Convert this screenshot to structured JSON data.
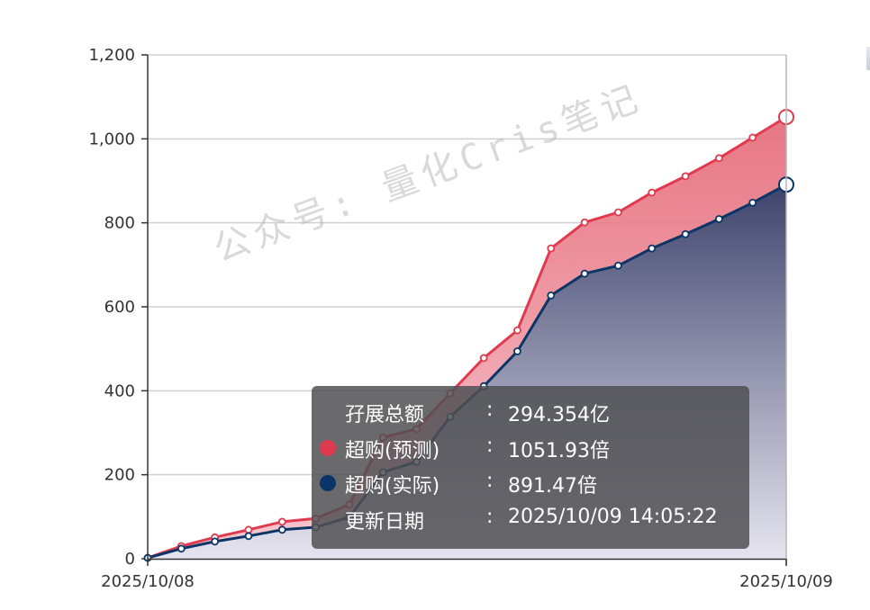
{
  "chart_data": {
    "type": "area",
    "title": "",
    "xlabel": "",
    "ylabel": "",
    "ylim": [
      0,
      1200
    ],
    "y_ticks": [
      "0",
      "200",
      "400",
      "600",
      "800",
      "1,000",
      "1,200"
    ],
    "x_tick_labels": [
      "2025/10/08",
      "2025/10/09"
    ],
    "grid": true,
    "series": [
      {
        "name": "超购(预测)",
        "color": "#e03a4e",
        "values": [
          2,
          30,
          51,
          69,
          88,
          96,
          129,
          289,
          309,
          394,
          478,
          544,
          739,
          801,
          825,
          872,
          911,
          954,
          1003,
          1052
        ]
      },
      {
        "name": "超购(实际)",
        "color": "#0b3566",
        "values": [
          2,
          24,
          41,
          54,
          69,
          75,
          99,
          206,
          231,
          338,
          411,
          494,
          627,
          679,
          698,
          739,
          773,
          809,
          848,
          891
        ]
      }
    ]
  },
  "watermark": "公众号: 量化Cris笔记",
  "tooltip": {
    "rows": [
      {
        "label": "孖展总额",
        "colon": ":",
        "value": "294.354亿",
        "dot": ""
      },
      {
        "label": "超购(预测)",
        "colon": ":",
        "value": "1051.93倍",
        "dot": "#e03a4e"
      },
      {
        "label": "超购(实际)",
        "colon": ":",
        "value": "891.47倍",
        "dot": "#0b3566"
      },
      {
        "label": "更新日期",
        "colon": ":",
        "value": "2025/10/09 14:05:22",
        "dot": ""
      }
    ]
  }
}
